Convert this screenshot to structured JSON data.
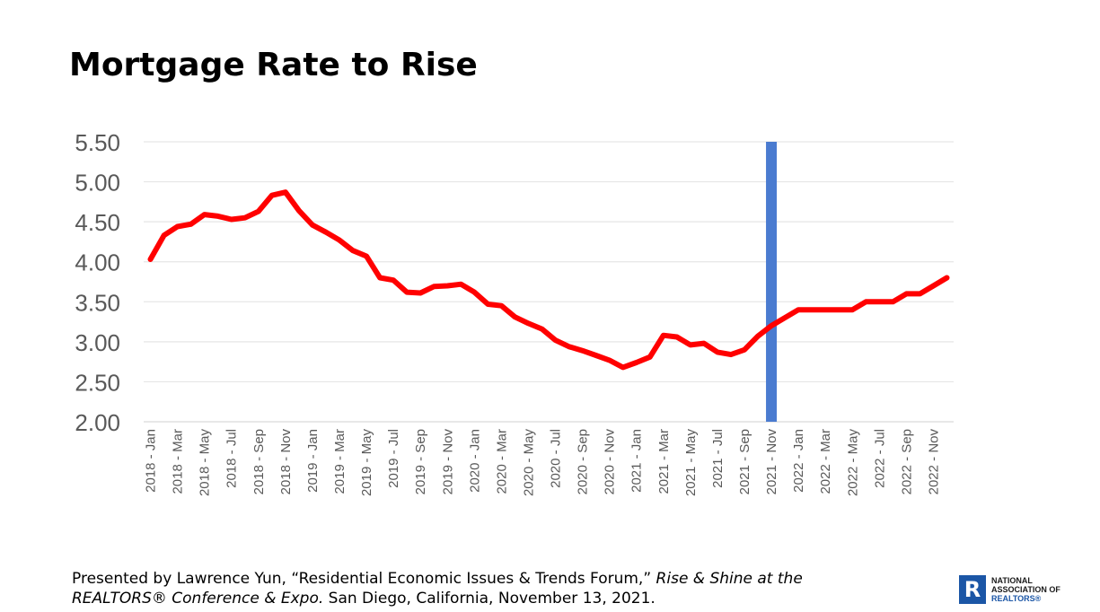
{
  "title": "Mortgage Rate to Rise",
  "footer": {
    "line1_prefix": "Presented by Lawrence Yun, “Residential Economic Issues & Trends Forum,” ",
    "line1_italic": "Rise & Shine at the",
    "line2_italic": "REALTORS® Conference & Expo.",
    "line2_suffix": " San Diego, California, November 13, 2021."
  },
  "logo": {
    "letter": "R",
    "line1": "NATIONAL",
    "line2": "ASSOCIATION OF",
    "line3": "REALTORS®",
    "brand_color": "#1b56a6"
  },
  "chart_data": {
    "type": "line",
    "ylim": [
      2.0,
      5.5
    ],
    "yticks": [
      "5.50",
      "5.00",
      "4.50",
      "4.00",
      "3.50",
      "3.00",
      "2.50",
      "2.00"
    ],
    "ytick_values": [
      5.5,
      5.0,
      4.5,
      4.0,
      3.5,
      3.0,
      2.5,
      2.0
    ],
    "grid": true,
    "line_color": "#ff0000",
    "marker_color": "#4a7bd0",
    "marker_at": "2021 - Nov",
    "xtick_labels": [
      "2018 - Jan",
      "2018 - Mar",
      "2018 - May",
      "2018 - Jul",
      "2018 - Sep",
      "2018 - Nov",
      "2019 - Jan",
      "2019 - Mar",
      "2019 - May",
      "2019 - Jul",
      "2019 - Sep",
      "2019 - Nov",
      "2020 - Jan",
      "2020 - Mar",
      "2020 - May",
      "2020 - Jul",
      "2020 - Sep",
      "2020 - Nov",
      "2021 - Jan",
      "2021 - Mar",
      "2021 - May",
      "2021 - Jul",
      "2021 - Sep",
      "2021 - Nov",
      "2022 - Jan",
      "2022 - Mar",
      "2022 - May",
      "2022 - Jul",
      "2022 - Sep",
      "2022 - Nov"
    ],
    "categories": [
      "2018 - Jan",
      "2018 - Feb",
      "2018 - Mar",
      "2018 - Apr",
      "2018 - May",
      "2018 - Jun",
      "2018 - Jul",
      "2018 - Aug",
      "2018 - Sep",
      "2018 - Oct",
      "2018 - Nov",
      "2018 - Dec",
      "2019 - Jan",
      "2019 - Feb",
      "2019 - Mar",
      "2019 - Apr",
      "2019 - May",
      "2019 - Jun",
      "2019 - Jul",
      "2019 - Aug",
      "2019 - Sep",
      "2019 - Oct",
      "2019 - Nov",
      "2019 - Dec",
      "2020 - Jan",
      "2020 - Feb",
      "2020 - Mar",
      "2020 - Apr",
      "2020 - May",
      "2020 - Jun",
      "2020 - Jul",
      "2020 - Aug",
      "2020 - Sep",
      "2020 - Oct",
      "2020 - Nov",
      "2020 - Dec",
      "2021 - Jan",
      "2021 - Feb",
      "2021 - Mar",
      "2021 - Apr",
      "2021 - May",
      "2021 - Jun",
      "2021 - Jul",
      "2021 - Aug",
      "2021 - Sep",
      "2021 - Oct",
      "2021 - Nov",
      "2021 - Dec",
      "2022 - Jan",
      "2022 - Feb",
      "2022 - Mar",
      "2022 - Apr",
      "2022 - May",
      "2022 - Jun",
      "2022 - Jul",
      "2022 - Aug",
      "2022 - Sep",
      "2022 - Oct",
      "2022 - Nov",
      "2022 - Dec"
    ],
    "values": [
      4.03,
      4.33,
      4.44,
      4.47,
      4.59,
      4.57,
      4.53,
      4.55,
      4.63,
      4.83,
      4.87,
      4.64,
      4.46,
      4.37,
      4.27,
      4.14,
      4.07,
      3.8,
      3.77,
      3.62,
      3.61,
      3.69,
      3.7,
      3.72,
      3.62,
      3.47,
      3.45,
      3.31,
      3.23,
      3.16,
      3.02,
      2.94,
      2.89,
      2.83,
      2.77,
      2.68,
      2.74,
      2.81,
      3.08,
      3.06,
      2.96,
      2.98,
      2.87,
      2.84,
      2.9,
      3.07,
      3.2,
      3.3,
      3.4,
      3.4,
      3.4,
      3.4,
      3.4,
      3.5,
      3.5,
      3.5,
      3.6,
      3.6,
      3.7,
      3.8
    ]
  }
}
